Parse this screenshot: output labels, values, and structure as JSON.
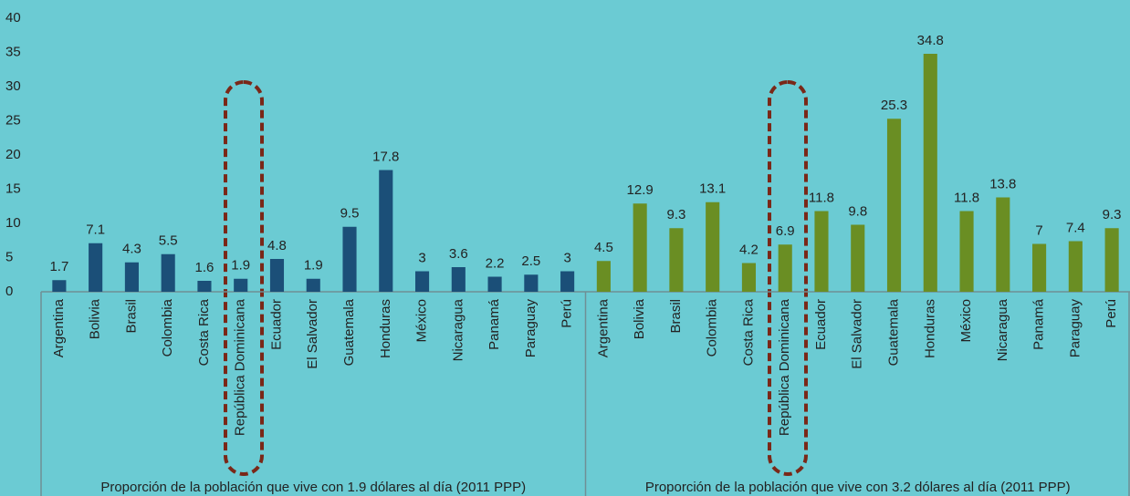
{
  "chart_data": {
    "type": "bar",
    "ylim": [
      0,
      40
    ],
    "yticks": [
      0,
      5,
      10,
      15,
      20,
      25,
      30,
      35,
      40
    ],
    "groups": [
      {
        "label": "Proporción de la población que vive con 1.9 dólares al día (2011 PPP)",
        "color": "#1b4f78",
        "categories": [
          "Argentina",
          "Bolivia",
          "Brasil",
          "Colombia",
          "Costa Rica",
          "República Dominicana",
          "Ecuador",
          "El Salvador",
          "Guatemala",
          "Honduras",
          "México",
          "Nicaragua",
          "Panamá",
          "Paraguay",
          "Perú"
        ],
        "values": [
          1.7,
          7.1,
          4.3,
          5.5,
          1.6,
          1.9,
          4.8,
          1.9,
          9.5,
          17.8,
          3,
          3.6,
          2.2,
          2.5,
          3
        ]
      },
      {
        "label": "Proporción de la población que vive con 3.2 dólares al día (2011 PPP)",
        "color": "#6a8e23",
        "categories": [
          "Argentina",
          "Bolivia",
          "Brasil",
          "Colombia",
          "Costa Rica",
          "República Dominicana",
          "Ecuador",
          "El Salvador",
          "Guatemala",
          "Honduras",
          "México",
          "Nicaragua",
          "Panamá",
          "Paraguay",
          "Perú"
        ],
        "values": [
          4.5,
          12.9,
          9.3,
          13.1,
          4.2,
          6.9,
          11.8,
          9.8,
          25.3,
          34.8,
          11.8,
          13.8,
          7,
          7.4,
          9.3
        ]
      }
    ]
  }
}
